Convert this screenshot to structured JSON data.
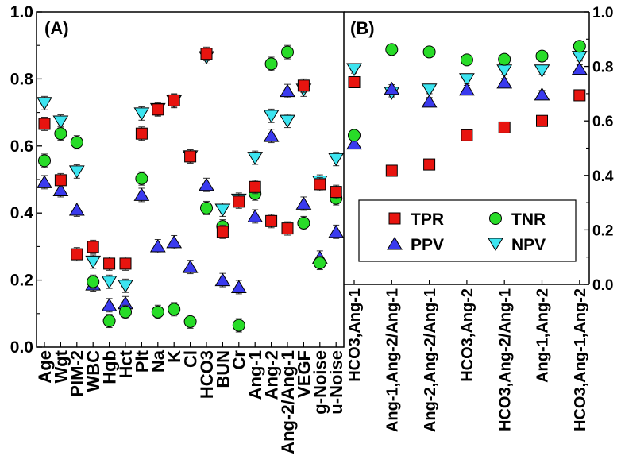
{
  "colors": {
    "TPR": "#e8140f",
    "TNR": "#28dc28",
    "PPV": "#3a3aee",
    "NPV": "#3ce4f0"
  },
  "legend": [
    {
      "key": "TPR",
      "label": "TPR",
      "marker": "square"
    },
    {
      "key": "TNR",
      "label": "TNR",
      "marker": "circle"
    },
    {
      "key": "PPV",
      "label": "PPV",
      "marker": "triangle-up"
    },
    {
      "key": "NPV",
      "label": "NPV",
      "marker": "triangle-down"
    }
  ],
  "chart_data": [
    {
      "type": "scatter",
      "title": "(A)",
      "xlabel": "",
      "ylabel": "",
      "ylim": [
        0,
        1.0
      ],
      "yticks": [
        "0.0",
        "0.2",
        "0.4",
        "0.6",
        "0.8",
        "1.0"
      ],
      "legend_position": "none",
      "categories": [
        "Age",
        "Wgt",
        "PIM-2",
        "WBC",
        "Hgb",
        "Hct",
        "Plt",
        "Na",
        "K",
        "Cl",
        "HCO3",
        "BUN",
        "Cr",
        "Ang-1",
        "Ang-2",
        "Ang-2/Ang-1",
        "VEGF",
        "g-Noise",
        "u-Noise"
      ],
      "series": [
        {
          "name": "TPR",
          "values": [
            0.666,
            0.498,
            0.277,
            0.299,
            0.249,
            0.249,
            0.637,
            0.709,
            0.736,
            0.569,
            0.875,
            0.344,
            0.434,
            0.478,
            0.376,
            0.354,
            0.78,
            0.486,
            0.463
          ]
        },
        {
          "name": "TNR",
          "values": [
            0.556,
            0.637,
            0.611,
            0.195,
            0.078,
            0.105,
            0.503,
            0.105,
            0.113,
            0.076,
            0.415,
            0.36,
            0.065,
            0.458,
            0.845,
            0.88,
            0.37,
            0.251,
            0.444
          ]
        },
        {
          "name": "PPV",
          "values": [
            0.492,
            0.468,
            0.41,
            0.187,
            0.125,
            0.131,
            0.454,
            0.301,
            0.313,
            0.239,
            0.484,
            0.2,
            0.179,
            0.39,
            0.63,
            0.764,
            0.428,
            0.267,
            0.344
          ]
        },
        {
          "name": "NPV",
          "values": [
            0.728,
            0.673,
            0.524,
            0.255,
            0.195,
            0.183,
            0.697,
            0.71,
            0.734,
            0.569,
            0.865,
            0.41,
            0.44,
            0.565,
            0.69,
            0.675,
            0.768,
            0.494,
            0.561
          ]
        }
      ],
      "error_bar": 0.02
    },
    {
      "type": "scatter",
      "title": "(B)",
      "xlabel": "",
      "ylabel": "",
      "ylim": [
        0,
        1.0
      ],
      "yticks": [
        "0.0",
        "0.2",
        "0.4",
        "0.6",
        "0.8",
        "1.0"
      ],
      "legend_position": "bottom-center",
      "categories": [
        "HCO3,Ang-1",
        "Ang-1,Ang-2/Ang-1",
        "Ang-2,Ang-2/Ang-1",
        "HCO3,Ang-2",
        "HCO3,Ang-2/Ang-1",
        "Ang-1,Ang-2",
        "HCO3,Ang-1,Ang-2"
      ],
      "series": [
        {
          "name": "TPR",
          "values": [
            0.742,
            0.417,
            0.44,
            0.547,
            0.576,
            0.6,
            0.694
          ]
        },
        {
          "name": "TNR",
          "values": [
            0.547,
            0.862,
            0.853,
            0.824,
            0.826,
            0.838,
            0.874
          ]
        },
        {
          "name": "PPV",
          "values": [
            0.517,
            0.718,
            0.671,
            0.715,
            0.741,
            0.697,
            0.791
          ]
        },
        {
          "name": "NPV",
          "values": [
            0.79,
            0.703,
            0.715,
            0.753,
            0.785,
            0.785,
            0.835
          ]
        }
      ],
      "error_bar": 0.015
    }
  ]
}
